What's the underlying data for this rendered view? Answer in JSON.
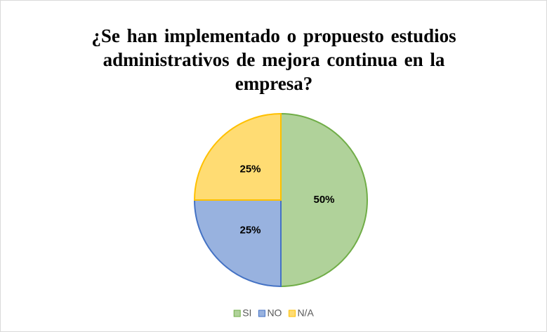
{
  "chart_data": {
    "type": "pie",
    "title": "¿Se han implementado o propuesto estudios administrativos de mejora continua en la empresa?",
    "categories": [
      "SI",
      "NO",
      "N/A"
    ],
    "values": [
      50,
      25,
      25
    ],
    "value_labels": [
      "50%",
      "25%",
      "25%"
    ],
    "colors": [
      "#70ad47",
      "#4472c4",
      "#ffc000"
    ],
    "legend": "bottom"
  }
}
